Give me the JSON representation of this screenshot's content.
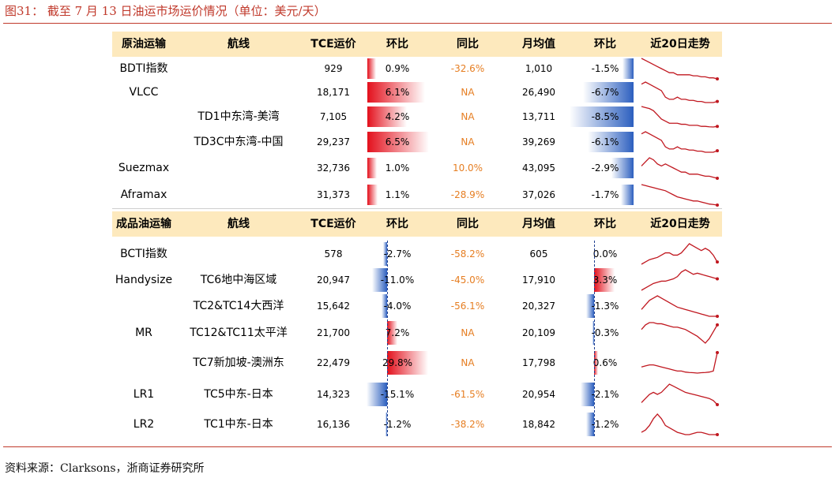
{
  "title": "图31：  截至 7 月 13 日油运市场运价情况（单位：美元/天）",
  "source": "资料来源：Clarksons，浙商证券研究所",
  "crude": {
    "headers": [
      "原油运输",
      "航线",
      "TCE运价",
      "环比",
      "同比",
      "月均值",
      "环比",
      "近20日走势"
    ],
    "rows": [
      {
        "name": "BDTI指数",
        "route": "",
        "tce": "929",
        "wow": "0.9%",
        "wow_v": 0.9,
        "yoy": "-32.6%",
        "avg": "1,010",
        "avg_chg": "-1.5%",
        "avg_chg_v": -1.5,
        "trend": [
          10,
          9,
          8,
          7,
          6,
          5,
          4,
          3,
          3,
          2,
          2,
          2,
          2,
          1.5,
          1.5,
          1,
          1,
          0.5,
          0.5,
          0
        ]
      },
      {
        "name": "VLCC",
        "route": "",
        "tce": "18,171",
        "wow": "6.1%",
        "wow_v": 6.1,
        "yoy": "NA",
        "avg": "26,490",
        "avg_chg": "-6.7%",
        "avg_chg_v": -6.7,
        "trend": [
          9,
          10,
          9,
          8,
          7,
          6,
          3,
          2,
          2,
          3,
          2,
          2,
          1.5,
          1.5,
          1,
          1,
          0.5,
          0.5,
          0.5,
          1
        ]
      },
      {
        "name": "",
        "route": "TD1中东湾-美湾",
        "tce": "7,105",
        "wow": "4.2%",
        "wow_v": 4.2,
        "yoy": "NA",
        "avg": "13,711",
        "avg_chg": "-8.5%",
        "avg_chg_v": -8.5,
        "trend": [
          10,
          9.5,
          9,
          8,
          6,
          4,
          3,
          2,
          2,
          2,
          1.5,
          1.5,
          1,
          1,
          1,
          0.5,
          0.5,
          0.3,
          0.2,
          0.5
        ]
      },
      {
        "name": "",
        "route": "TD3C中东湾-中国",
        "tce": "29,237",
        "wow": "6.5%",
        "wow_v": 6.5,
        "yoy": "NA",
        "avg": "39,269",
        "avg_chg": "-6.1%",
        "avg_chg_v": -6.1,
        "trend": [
          9,
          10,
          9,
          8,
          7,
          6,
          3,
          2,
          2,
          3,
          2,
          2,
          1.5,
          1.5,
          1,
          1,
          0.5,
          0.5,
          0.5,
          1.2
        ]
      },
      {
        "name": "Suezmax",
        "route": "",
        "tce": "32,736",
        "wow": "1.0%",
        "wow_v": 1.0,
        "yoy": "10.0%",
        "avg": "43,095",
        "avg_chg": "-2.9%",
        "avg_chg_v": -2.9,
        "trend": [
          6,
          8,
          10,
          9,
          7,
          6,
          7,
          6,
          5,
          4,
          3,
          3,
          2,
          2,
          2,
          1.5,
          1,
          1,
          0.5,
          0
        ]
      },
      {
        "name": "Aframax",
        "route": "",
        "tce": "31,373",
        "wow": "1.1%",
        "wow_v": 1.1,
        "yoy": "-28.9%",
        "avg": "37,026",
        "avg_chg": "-1.7%",
        "avg_chg_v": -1.7,
        "trend": [
          10,
          9.5,
          9,
          8.5,
          8,
          7.5,
          7,
          6,
          5,
          4,
          3.5,
          3,
          2.5,
          2,
          2,
          1.5,
          1,
          0.5,
          0.3,
          0
        ]
      }
    ]
  },
  "product": {
    "headers": [
      "成品油运输",
      "航线",
      "TCE运价",
      "环比",
      "同比",
      "月均值",
      "环比",
      "近20日走势"
    ],
    "rows": [
      {
        "name": "BCTI指数",
        "route": "",
        "tce": "578",
        "wow": "-2.7%",
        "wow_v": -2.7,
        "yoy": "-58.2%",
        "avg": "605",
        "avg_chg": "0.0%",
        "avg_chg_v": 0.0,
        "trend": [
          1,
          2,
          3,
          3.5,
          4,
          5,
          6,
          6,
          5,
          5,
          6,
          8,
          10,
          9,
          8,
          7,
          8,
          7,
          5,
          2
        ]
      },
      {
        "name": "Handysize",
        "route": "TC6地中海区域",
        "tce": "20,947",
        "wow": "-11.0%",
        "wow_v": -11.0,
        "yoy": "-45.0%",
        "avg": "17,910",
        "avg_chg": "3.3%",
        "avg_chg_v": 3.3,
        "trend": [
          1,
          2,
          3,
          4,
          4.5,
          5,
          5,
          5.5,
          6,
          7,
          9,
          10,
          9,
          8,
          8.5,
          8,
          7.5,
          7,
          6.5,
          6
        ]
      },
      {
        "name": "",
        "route": "TC2&TC14大西洋",
        "tce": "15,642",
        "wow": "-4.0%",
        "wow_v": -4.0,
        "yoy": "-56.1%",
        "avg": "20,327",
        "avg_chg": "-1.3%",
        "avg_chg_v": -1.3,
        "trend": [
          4,
          6,
          8,
          9,
          10,
          9,
          8,
          7,
          6,
          5,
          4.5,
          4,
          3.5,
          3,
          2.5,
          2,
          1.5,
          1,
          1,
          1
        ]
      },
      {
        "name": "MR",
        "route": "TC12&TC11太平洋",
        "tce": "21,700",
        "wow": "7.2%",
        "wow_v": 7.2,
        "yoy": "NA",
        "avg": "20,109",
        "avg_chg": "-0.3%",
        "avg_chg_v": -0.3,
        "trend": [
          6,
          8,
          9,
          9,
          8.5,
          8.5,
          8,
          7.5,
          7,
          7,
          6.5,
          6,
          5,
          4,
          3,
          1.5,
          0,
          2,
          5,
          8
        ]
      },
      {
        "name": "",
        "route": "TC7新加坡-澳洲东",
        "tce": "22,479",
        "wow": "29.8%",
        "wow_v": 29.8,
        "yoy": "NA",
        "avg": "17,798",
        "avg_chg": "0.6%",
        "avg_chg_v": 0.6,
        "trend": [
          3,
          3.5,
          4,
          4,
          3.5,
          3,
          2.5,
          2,
          1.5,
          1,
          1,
          0.5,
          0.3,
          0.2,
          0,
          0.2,
          0.3,
          0.5,
          1,
          10
        ]
      },
      {
        "name": "LR1",
        "route": "TC5中东-日本",
        "tce": "14,323",
        "wow": "-15.1%",
        "wow_v": -15.1,
        "yoy": "-61.5%",
        "avg": "20,954",
        "avg_chg": "-2.1%",
        "avg_chg_v": -2.1,
        "trend": [
          1,
          3,
          5,
          6,
          5,
          6,
          8,
          10,
          9,
          8,
          7,
          6,
          5.5,
          5,
          4.5,
          4,
          3.5,
          3,
          2,
          0
        ]
      },
      {
        "name": "LR2",
        "route": "TC1中东-日本",
        "tce": "16,136",
        "wow": "-1.2%",
        "wow_v": -1.2,
        "yoy": "-38.2%",
        "avg": "18,842",
        "avg_chg": "-1.2%",
        "avg_chg_v": -1.2,
        "trend": [
          2,
          3,
          5,
          8,
          10,
          8,
          5,
          4,
          3,
          2,
          1.5,
          1,
          1,
          1.5,
          2,
          2,
          1.5,
          1,
          1,
          1
        ]
      }
    ]
  }
}
